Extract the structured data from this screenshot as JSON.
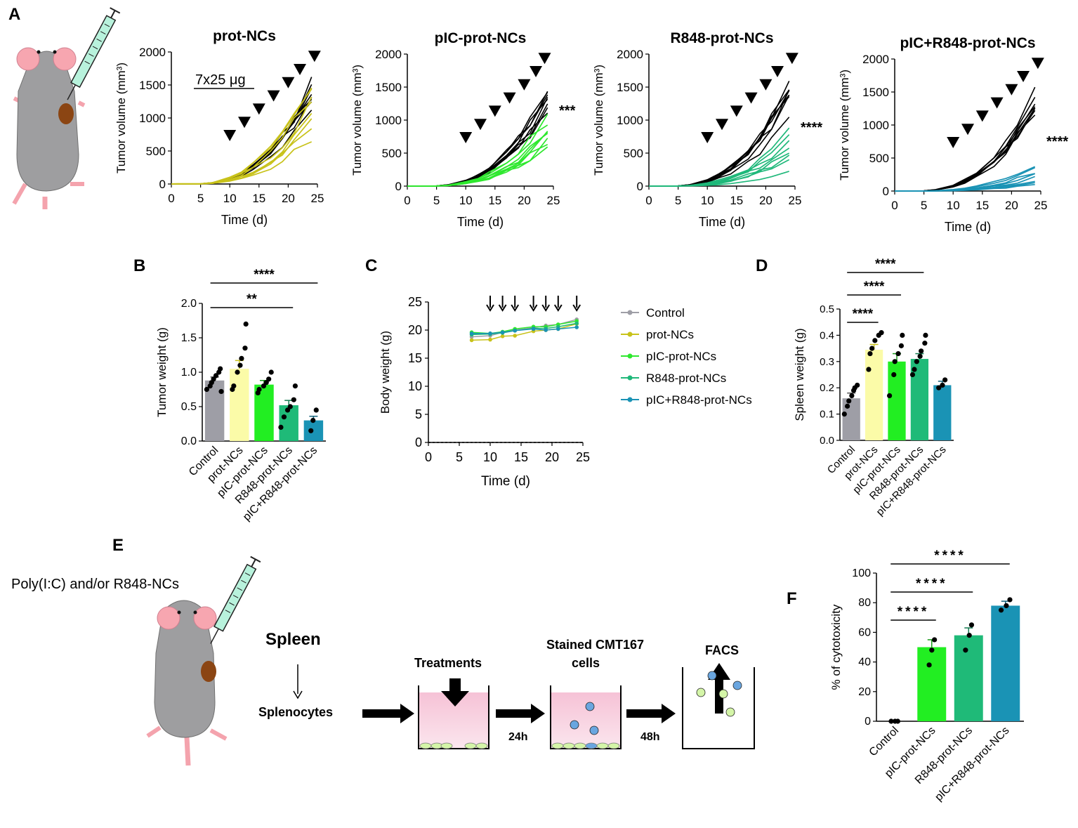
{
  "panel_letters": {
    "A": "A",
    "B": "B",
    "C": "C",
    "D": "D",
    "E": "E",
    "F": "F"
  },
  "colors": {
    "control": "#9e9ea6",
    "prot": "#c8c21a",
    "pic": "#2ee82e",
    "r848": "#1fb87a",
    "combo": "#1a93b5",
    "prot_bar": "#fbfba8",
    "pic_bar": "#22ee22",
    "r848_bar": "#1fba78",
    "combo_bar": "#1a93b5",
    "pink": "#f7c7d9",
    "mouse_gray": "#9e9ea0",
    "tumor": "#8b4513"
  },
  "panel_a": {
    "dosing_label": "7x25 μg",
    "control_series_count": 8,
    "charts": [
      {
        "title": "prot-NCs",
        "series_color": "prot",
        "significance": "",
        "ylim": [
          0,
          2000
        ],
        "yticks": [
          "0",
          "500",
          "1000",
          "1500",
          "2000"
        ],
        "xticks": [
          "0",
          "5",
          "10",
          "15",
          "20",
          "25"
        ],
        "xlabel": "Time (d)",
        "ylabel": "Tumor volume (mm³)",
        "dose_days": [
          10,
          12.5,
          15,
          17.5,
          20,
          22,
          24.5
        ],
        "treated_final": [
          1650,
          1400,
          1250,
          1050,
          950,
          880,
          700,
          1550
        ]
      },
      {
        "title": "pIC-prot-NCs",
        "series_color": "pic",
        "significance": "***",
        "ylim": [
          0,
          2000
        ],
        "yticks": [
          "0",
          "500",
          "1000",
          "1500",
          "2000"
        ],
        "xticks": [
          "0",
          "5",
          "10",
          "15",
          "20",
          "25"
        ],
        "xlabel": "Time (d)",
        "ylabel": "Tumor volume (mm³)",
        "dose_days": [
          10,
          12.5,
          15,
          17.5,
          20,
          22,
          23.5
        ],
        "treated_final": [
          1100,
          1050,
          850,
          750,
          700,
          650,
          620,
          800
        ]
      },
      {
        "title": "R848-prot-NCs",
        "series_color": "r848",
        "significance": "****",
        "ylim": [
          0,
          2000
        ],
        "yticks": [
          "0",
          "500",
          "1000",
          "1500",
          "2000"
        ],
        "xticks": [
          "0",
          "5",
          "10",
          "15",
          "20",
          "25"
        ],
        "xlabel": "Time (d)",
        "ylabel": "Tumor volume (mm³)",
        "dose_days": [
          10,
          12.5,
          15,
          17.5,
          20,
          22,
          24.5
        ],
        "treated_final": [
          800,
          700,
          650,
          600,
          500,
          450,
          400,
          200
        ]
      },
      {
        "title": "pIC+R848-prot-NCs",
        "series_color": "combo",
        "significance": "****",
        "ylim": [
          0,
          2000
        ],
        "yticks": [
          "0",
          "500",
          "1000",
          "1500",
          "2000"
        ],
        "xticks": [
          "0",
          "5",
          "10",
          "15",
          "20",
          "25"
        ],
        "xlabel": "Time (d)",
        "ylabel": "Tumor volume (mm³)",
        "dose_days": [
          10,
          12.5,
          15,
          17.5,
          20,
          22,
          24.5
        ],
        "treated_final": [
          380,
          320,
          280,
          250,
          200,
          150,
          120,
          100
        ]
      }
    ]
  },
  "panel_e": {
    "injection_label": "Poly(I:C) and/or R848-NCs",
    "spleen": "Spleen",
    "splenocytes": "Splenocytes",
    "treatments": "Treatments",
    "stained_line1": "Stained CMT167",
    "stained_line2": "cells",
    "facs": "FACS",
    "t24": "24h",
    "t48": "48h"
  },
  "chart_data": [
    {
      "panel": "B",
      "type": "bar",
      "title": "",
      "xlabel": "",
      "ylabel": "Tumor weight (g)",
      "ylim": [
        0,
        2.0
      ],
      "yticks": [
        "0.0",
        "0.5",
        "1.0",
        "1.5",
        "2.0"
      ],
      "categories": [
        "Control",
        "prot-NCs",
        "pIC-prot-NCs",
        "R848-prot-NCs",
        "pIC+R848-prot-NCs"
      ],
      "values": [
        0.88,
        1.05,
        0.82,
        0.52,
        0.3
      ],
      "errors": [
        0.05,
        0.12,
        0.06,
        0.07,
        0.06
      ],
      "points": [
        [
          0.75,
          0.8,
          0.85,
          0.9,
          0.95,
          1.0,
          1.05,
          0.72
        ],
        [
          0.75,
          0.8,
          1.0,
          1.1,
          1.2,
          1.35,
          1.7
        ],
        [
          0.7,
          0.75,
          0.8,
          0.85,
          0.9,
          1.0
        ],
        [
          0.2,
          0.35,
          0.45,
          0.5,
          0.6,
          0.8
        ],
        [
          0.15,
          0.3,
          0.45
        ]
      ],
      "significance": [
        {
          "from": 0,
          "to": 3,
          "label": "**"
        },
        {
          "from": 0,
          "to": 4,
          "label": "****"
        }
      ]
    },
    {
      "panel": "C",
      "type": "line",
      "title": "",
      "xlabel": "Time (d)",
      "ylabel": "Body weight (g)",
      "xlim": [
        0,
        25
      ],
      "ylim": [
        0,
        25
      ],
      "xticks": [
        "0",
        "5",
        "10",
        "15",
        "20",
        "25"
      ],
      "yticks": [
        "0",
        "5",
        "10",
        "15",
        "20",
        "25"
      ],
      "x": [
        7,
        10,
        12,
        14,
        17,
        19,
        21,
        24
      ],
      "series": [
        {
          "name": "Control",
          "color": "control",
          "values": [
            18.8,
            19.0,
            19.6,
            20.0,
            20.4,
            20.8,
            21.0,
            21.9
          ]
        },
        {
          "name": "prot-NCs",
          "color": "prot",
          "values": [
            18.2,
            18.3,
            18.9,
            19.0,
            19.8,
            20.0,
            20.2,
            21.1
          ]
        },
        {
          "name": "pIC-prot-NCs",
          "color": "pic",
          "values": [
            19.6,
            19.4,
            19.7,
            20.2,
            20.6,
            20.6,
            21.0,
            21.6
          ]
        },
        {
          "name": "R848-prot-NCs",
          "color": "r848",
          "values": [
            19.2,
            19.3,
            19.5,
            19.9,
            20.3,
            20.3,
            20.6,
            21.2
          ]
        },
        {
          "name": "pIC+R848-prot-NCs",
          "color": "combo",
          "values": [
            19.4,
            19.4,
            19.6,
            19.9,
            20.2,
            20.0,
            20.2,
            20.5
          ]
        }
      ],
      "arrows_days": [
        10,
        12,
        14,
        17,
        19,
        21,
        24
      ]
    },
    {
      "panel": "D",
      "type": "bar",
      "title": "",
      "xlabel": "",
      "ylabel": "Spleen weight (g)",
      "ylim": [
        0,
        0.5
      ],
      "yticks": [
        "0.0",
        "0.1",
        "0.2",
        "0.3",
        "0.4",
        "0.5"
      ],
      "categories": [
        "Control",
        "prot-NCs",
        "pIC-prot-NCs",
        "R848-prot-NCs",
        "pIC+R848-prot-NCs"
      ],
      "values": [
        0.16,
        0.345,
        0.3,
        0.31,
        0.21
      ],
      "errors": [
        0.02,
        0.02,
        0.03,
        0.02,
        0.015
      ],
      "points": [
        [
          0.1,
          0.13,
          0.15,
          0.17,
          0.19,
          0.2,
          0.21
        ],
        [
          0.27,
          0.33,
          0.35,
          0.38,
          0.4,
          0.41
        ],
        [
          0.17,
          0.25,
          0.3,
          0.33,
          0.36,
          0.4
        ],
        [
          0.25,
          0.27,
          0.3,
          0.32,
          0.34,
          0.37,
          0.4
        ],
        [
          0.2,
          0.21,
          0.23
        ]
      ],
      "significance": [
        {
          "from": 0,
          "to": 1,
          "label": "****"
        },
        {
          "from": 0,
          "to": 2,
          "label": "****"
        },
        {
          "from": 0,
          "to": 3,
          "label": "****"
        }
      ]
    },
    {
      "panel": "F",
      "type": "bar",
      "title": "",
      "xlabel": "",
      "ylabel": "% of cytotoxicity",
      "ylim": [
        0,
        100
      ],
      "yticks": [
        "0",
        "20",
        "40",
        "60",
        "80",
        "100"
      ],
      "categories": [
        "Control",
        "pIC-prot-NCs",
        "R848-prot-NCs",
        "pIC+R848-prot-NCs"
      ],
      "values": [
        0,
        50,
        58,
        78
      ],
      "errors": [
        0,
        5,
        5,
        3
      ],
      "points": [
        [
          0,
          0,
          0
        ],
        [
          38,
          48,
          55
        ],
        [
          48,
          58,
          65
        ],
        [
          75,
          78,
          82
        ]
      ],
      "significance": [
        {
          "from": 0,
          "to": 1,
          "label": "****"
        },
        {
          "from": 0,
          "to": 2,
          "label": "****"
        },
        {
          "from": 0,
          "to": 3,
          "label": "****"
        }
      ]
    }
  ]
}
